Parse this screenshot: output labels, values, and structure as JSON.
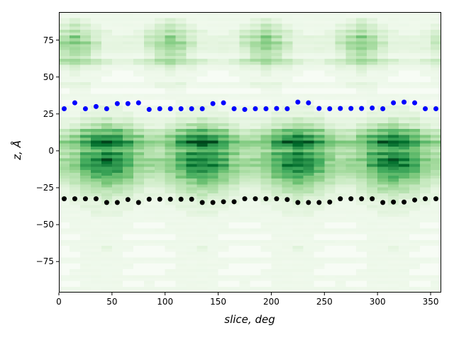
{
  "figure": {
    "background": "#ffffff"
  },
  "chart_data": {
    "type": "heatmap",
    "title": "",
    "xlabel": "slice, deg",
    "ylabel": "z, Å",
    "x_range": [
      0,
      360
    ],
    "y_range": [
      -96,
      94
    ],
    "grid": false,
    "legend": "none",
    "x_ticks": [
      0,
      50,
      100,
      150,
      200,
      250,
      300,
      350
    ],
    "x_tick_labels": [
      "0",
      "50",
      "100",
      "150",
      "200",
      "250",
      "300",
      "350"
    ],
    "y_ticks": [
      75,
      50,
      25,
      0,
      -25,
      -50,
      -75
    ],
    "y_tick_labels": [
      "75",
      "50",
      "25",
      "0",
      "−25",
      "−50",
      "−75"
    ],
    "colormap": "Greens",
    "colormap_stops": [
      "#f7fcf5",
      "#e5f5e0",
      "#c7e9c0",
      "#a1d99b",
      "#74c476",
      "#41ab5d",
      "#238b45",
      "#006d2c",
      "#00441b"
    ],
    "heatmap": {
      "n_cols": 36,
      "n_rows": 48,
      "x_min": 0,
      "x_max": 360,
      "y_min": -96,
      "y_max": 94,
      "value_scale": 15,
      "rows_hex": [
        "111111111111111111111111111111111111",
        "232111111232111111232111111232111111",
        "343211112343211112343211112343211112",
        "454321123454321123454321123454321123",
        "575322224575322224575322224575322224",
        "676422224676422224676422224676422224",
        "565322223565322223565322223565322223",
        "454211112454211112454211112454211112",
        "565432234565432234565432234565432234",
        "232211112232211112232211112232211112",
        "121110011121110011121110011121110011",
        "111100001111100001111100001111100001",
        "222111111222111111222111111222111111",
        "011000000011000000011000000011000000",
        "111111111111111111111111111111111111",
        "001111000001111000001111000001111000",
        "111222111111222111111222111111222111",
        "112222211112222211112222211112222211",
        "223343322223343322223343322223343322",
        "234565432234565432234565432234565432",
        "457898754457898754457898754457898754",
        "579bcb975579bcb975579bcb975579bcb975",
        "78befeb8778befeb8778befeb8778befeb87",
        "5689a98655689a98655689a98655689a9865",
        "579bcb975579bcb975579bcb975579bcb975",
        "67aceca7667aceca7667aceca7667aceca76",
        "67acdca7667acdca7667acdca7667acdca76",
        "568aba865568aba865568aba865568aba865",
        "457898754457898754457898754457898754",
        "345676543345676543345676543345676543",
        "234555432234555432234555432234555432",
        "223343322223343322223343322223343322",
        "122232221122232221122232221122232221",
        "112222211112222211112222211112222211",
        "111222111111222111111222111111222111",
        "111111111111111111111111111111111111",
        "011111100011111100011111100011111100",
        "111111111111111111111111111111111111",
        "001111000001111000001111000001111000",
        "111111111111111111111111111111111111",
        "011121100011121100011121100011121100",
        "001111000001111000001111000001111000",
        "111111111111111111111111111111111111",
        "001111100001111100001111100001111100",
        "011111000011111000011111000011111000",
        "111111111111111111111111111111111111",
        "001111001001111001001111001001111001",
        "111111111111111111111111111111111111"
      ]
    },
    "series": [
      {
        "name": "upper-boundary-dots",
        "marker": "circle",
        "color": "#0000ff",
        "x": [
          5,
          15,
          25,
          35,
          45,
          55,
          65,
          75,
          85,
          95,
          105,
          115,
          125,
          135,
          145,
          155,
          165,
          175,
          185,
          195,
          205,
          215,
          225,
          235,
          245,
          255,
          265,
          275,
          285,
          295,
          305,
          315,
          325,
          335,
          345,
          355
        ],
        "y": [
          28.5,
          32.5,
          28.5,
          30,
          28.5,
          32,
          32,
          32.5,
          28,
          28.5,
          28.5,
          28.5,
          28.5,
          28.5,
          32,
          32.5,
          28.5,
          28,
          28.5,
          28.5,
          28.7,
          28.5,
          33,
          32.5,
          28.7,
          28.5,
          28.7,
          28.7,
          28.7,
          29,
          28.5,
          32.5,
          33,
          32.5,
          28.5,
          28.5
        ]
      },
      {
        "name": "lower-boundary-dots",
        "marker": "circle",
        "color": "#000000",
        "x": [
          5,
          15,
          25,
          35,
          45,
          55,
          65,
          75,
          85,
          95,
          105,
          115,
          125,
          135,
          145,
          155,
          165,
          175,
          185,
          195,
          205,
          215,
          225,
          235,
          245,
          255,
          265,
          275,
          285,
          295,
          305,
          315,
          325,
          335,
          345,
          355
        ],
        "y": [
          -32.5,
          -32.5,
          -32.5,
          -32.5,
          -35,
          -35,
          -33,
          -35,
          -32.8,
          -32.8,
          -32.8,
          -32.8,
          -32.8,
          -35,
          -35,
          -34.5,
          -34.5,
          -32.5,
          -32.5,
          -32.5,
          -32.5,
          -33,
          -35,
          -35,
          -35,
          -34.7,
          -32.5,
          -32.5,
          -32.5,
          -32.5,
          -35,
          -34.7,
          -34.7,
          -33.3,
          -32.5,
          -32.5
        ]
      }
    ]
  }
}
